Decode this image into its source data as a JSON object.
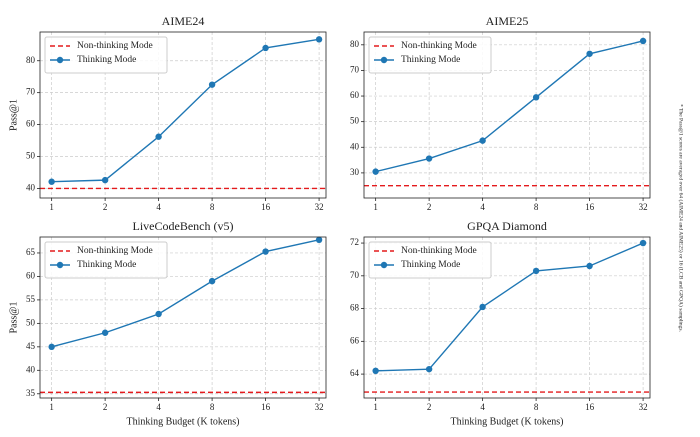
{
  "chart_data": [
    {
      "type": "line",
      "title": "AIME24",
      "y_label": "Pass@1",
      "x": [
        1,
        2,
        4,
        8,
        16,
        32
      ],
      "xticks": [
        1,
        2,
        4,
        8,
        16,
        32
      ],
      "xlim": [
        0.86,
        35
      ],
      "xscale": "log2",
      "ylim": [
        37,
        89
      ],
      "yticks": [
        40,
        50,
        60,
        70,
        80
      ],
      "grid": true,
      "legend": "upper left",
      "reference_lines": [
        {
          "name": "Non-thinking Mode",
          "value": 40,
          "color": "#e41a1c"
        }
      ],
      "series": [
        {
          "name": "Thinking Mode",
          "color": "#1f77b4",
          "values": [
            42.1,
            42.6,
            56.2,
            72.5,
            84.0,
            86.7
          ]
        }
      ]
    },
    {
      "type": "line",
      "title": "AIME25",
      "x": [
        1,
        2,
        4,
        8,
        16,
        32
      ],
      "xticks": [
        1,
        2,
        4,
        8,
        16,
        32
      ],
      "xlim": [
        0.86,
        35
      ],
      "xscale": "log2",
      "ylim": [
        20.2,
        85
      ],
      "yticks": [
        30,
        40,
        50,
        60,
        70,
        80
      ],
      "grid": true,
      "legend": "upper left",
      "reference_lines": [
        {
          "name": "Non-thinking Mode",
          "value": 25,
          "color": "#e41a1c"
        }
      ],
      "series": [
        {
          "name": "Thinking Mode",
          "color": "#1f77b4",
          "values": [
            30.5,
            35.6,
            42.6,
            59.5,
            76.5,
            81.5
          ]
        }
      ]
    },
    {
      "type": "line",
      "title": "LiveCodeBench (v5)",
      "y_label": "Pass@1",
      "x_label": "Thinking Budget (K tokens)",
      "x": [
        1,
        2,
        4,
        8,
        16,
        32
      ],
      "xticks": [
        1,
        2,
        4,
        8,
        16,
        32
      ],
      "xlim": [
        0.86,
        35
      ],
      "xscale": "log2",
      "ylim": [
        34.1,
        68.4
      ],
      "yticks": [
        35,
        40,
        45,
        50,
        55,
        60,
        65
      ],
      "grid": true,
      "legend": "upper left",
      "reference_lines": [
        {
          "name": "Non-thinking Mode",
          "value": 35.3,
          "color": "#e41a1c"
        }
      ],
      "series": [
        {
          "name": "Thinking Mode",
          "color": "#1f77b4",
          "values": [
            45.0,
            48.0,
            52.0,
            59.0,
            65.3,
            67.8
          ]
        }
      ]
    },
    {
      "type": "line",
      "title": "GPQA Diamond",
      "x_label": "Thinking Budget (K tokens)",
      "x": [
        1,
        2,
        4,
        8,
        16,
        32
      ],
      "xticks": [
        1,
        2,
        4,
        8,
        16,
        32
      ],
      "xlim": [
        0.86,
        35
      ],
      "xscale": "log2",
      "ylim": [
        62.54,
        72.37
      ],
      "yticks": [
        64,
        66,
        68,
        70,
        72
      ],
      "grid": true,
      "legend": "upper left",
      "reference_lines": [
        {
          "name": "Non-thinking Mode",
          "value": 62.9,
          "color": "#e41a1c"
        }
      ],
      "series": [
        {
          "name": "Thinking Mode",
          "color": "#1f77b4",
          "values": [
            64.2,
            64.3,
            68.1,
            70.3,
            70.6,
            72.0
          ]
        }
      ]
    }
  ],
  "footnote": "* The Pass@1 scores are averaged over 64 (AIME24 and AIME25) or 16 (LCB and GPQA) samplings."
}
